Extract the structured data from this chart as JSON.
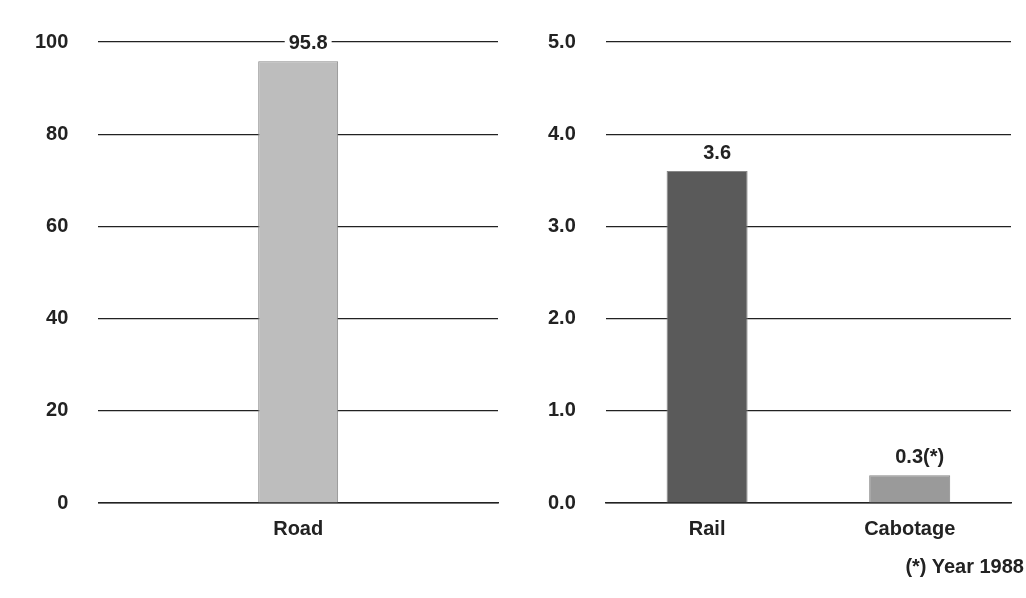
{
  "chart_data": [
    {
      "type": "bar",
      "categories": [
        "Road"
      ],
      "values": [
        95.8
      ],
      "color": "#bdbdbd",
      "ylim": [
        0,
        100
      ],
      "yticks": [
        0,
        20,
        40,
        60,
        80,
        100
      ],
      "grid": "y",
      "data_labels": true
    },
    {
      "type": "bar",
      "categories": [
        "Rail",
        "Cabotage"
      ],
      "values": [
        3.6,
        0.3
      ],
      "colors": [
        "#5a5a5a",
        "#9a9a9a"
      ],
      "value_labels": [
        "3.6",
        "0.3(*)"
      ],
      "ylim": [
        0,
        5
      ],
      "yticks": [
        {
          "value": 0,
          "label": "0.0"
        },
        {
          "value": 1,
          "label": "1.0"
        },
        {
          "value": 2,
          "label": "2.0"
        },
        {
          "value": 3,
          "label": "3.0"
        },
        {
          "value": 4,
          "label": "4.0"
        },
        {
          "value": 5,
          "label": "5.0"
        }
      ],
      "grid": "y",
      "annotations": [
        "(*) Year 1988"
      ]
    }
  ]
}
